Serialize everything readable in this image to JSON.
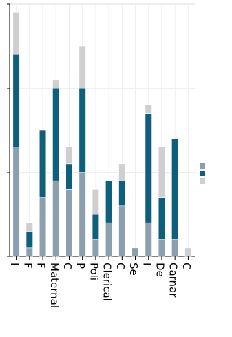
{
  "chart_data": {
    "type": "bar",
    "stacked": true,
    "orientation": "rotated-90-clockwise",
    "title": "",
    "xlabel": "",
    "ylabel": "",
    "categories": [
      "I",
      "F",
      "F",
      "Maternal",
      "C",
      "P",
      "Poli",
      "Clerical",
      "C",
      "Se",
      "I",
      "De",
      "Carnar",
      "C"
    ],
    "ylim": [
      0,
      3
    ],
    "yticks": [
      "",
      "",
      "",
      ""
    ],
    "grid": true,
    "legend": {
      "placement": "right",
      "entries": [
        "",
        "",
        ""
      ]
    },
    "series": [
      {
        "color": "#8c9fae",
        "values": [
          1.3,
          0.1,
          0.7,
          0.9,
          0.8,
          1.0,
          0.2,
          0.4,
          0.6,
          0.1,
          0.4,
          0.2,
          0.2,
          0.0
        ]
      },
      {
        "color": "#0e5f7b",
        "values": [
          1.1,
          0.2,
          0.8,
          1.1,
          0.3,
          1.0,
          0.3,
          0.5,
          0.3,
          0.0,
          1.3,
          0.5,
          1.2,
          0.0
        ]
      },
      {
        "color": "#cfcfcf",
        "values": [
          0.5,
          0.1,
          0.0,
          0.1,
          0.2,
          0.5,
          0.3,
          0.0,
          0.2,
          0.0,
          0.1,
          0.6,
          0.0,
          0.1
        ]
      }
    ]
  }
}
